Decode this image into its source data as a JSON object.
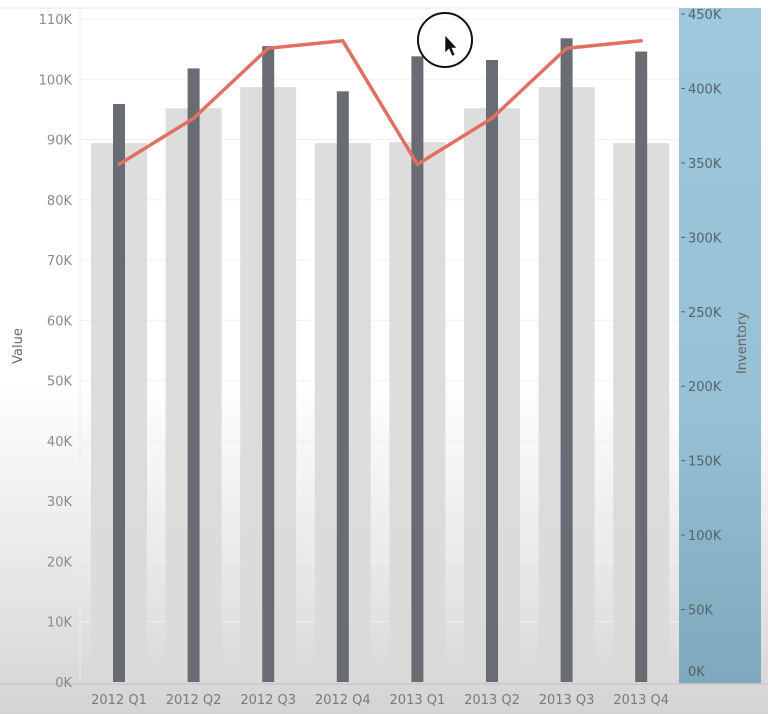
{
  "chart_data": {
    "type": "bar",
    "title": "",
    "xlabel": "",
    "ylabel": "Value",
    "y2label": "Inventory",
    "categories": [
      "2012 Q1",
      "2012 Q2",
      "2012 Q3",
      "2012 Q4",
      "2013 Q1",
      "2013 Q2",
      "2013 Q3",
      "2013 Q4"
    ],
    "ylim": [
      0,
      110000
    ],
    "y2lim": [
      0,
      450000
    ],
    "grid": true,
    "legend": "none",
    "series": [
      {
        "name": "Value (light bar)",
        "type": "bar",
        "axis": "left",
        "color": "#d9d9d9",
        "values": [
          89400,
          95200,
          98700,
          89400,
          89600,
          95200,
          98700,
          89400
        ]
      },
      {
        "name": "Value (dark bar)",
        "type": "bar",
        "axis": "left",
        "color": "#6a6c73",
        "values": [
          95900,
          101800,
          105500,
          98000,
          103800,
          103200,
          106800,
          104600
        ]
      },
      {
        "name": "Inventory",
        "type": "line",
        "axis": "right",
        "color": "#e07060",
        "values": [
          349000,
          380000,
          427000,
          432000,
          349000,
          380000,
          427000,
          432000
        ]
      }
    ],
    "left_ticks": [
      "0K",
      "10K",
      "20K",
      "30K",
      "40K",
      "50K",
      "60K",
      "70K",
      "80K",
      "90K",
      "100K",
      "110K"
    ],
    "right_ticks": [
      "0K",
      "50K",
      "100K",
      "150K",
      "200K",
      "250K",
      "300K",
      "350K",
      "400K",
      "450K"
    ]
  },
  "colors": {
    "light_bar": "#d9d9d9",
    "dark_bar": "#6a6c73",
    "line": "#e07060",
    "right_panel": "#9dc6da"
  },
  "overlay": {
    "cursor": "mouse-pointer-highlight"
  }
}
